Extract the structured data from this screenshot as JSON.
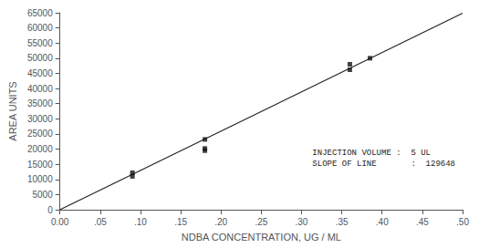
{
  "chart_data": {
    "type": "scatter",
    "xlabel": "NDBA CONCENTRATION, UG / ML",
    "ylabel": "AREA UNITS",
    "xlim": [
      0.0,
      0.5
    ],
    "ylim": [
      0,
      65000
    ],
    "xticks": [
      {
        "value": 0.0,
        "label": "0.00"
      },
      {
        "value": 0.05,
        "label": ".05"
      },
      {
        "value": 0.1,
        "label": ".10"
      },
      {
        "value": 0.15,
        "label": ".15"
      },
      {
        "value": 0.2,
        "label": ".20"
      },
      {
        "value": 0.25,
        "label": ".25"
      },
      {
        "value": 0.3,
        "label": ".30"
      },
      {
        "value": 0.35,
        "label": ".35"
      },
      {
        "value": 0.4,
        "label": ".40"
      },
      {
        "value": 0.45,
        "label": ".45"
      },
      {
        "value": 0.5,
        "label": ".50"
      }
    ],
    "yticks": [
      0,
      5000,
      10000,
      15000,
      20000,
      25000,
      30000,
      35000,
      40000,
      45000,
      50000,
      55000,
      60000,
      65000
    ],
    "grid": false,
    "series": [
      {
        "type": "line",
        "color": "#222222",
        "x": [
          0.0,
          0.5
        ],
        "values": [
          0,
          64824
        ]
      },
      {
        "type": "scatter",
        "color": "#111111",
        "marker": "square",
        "x": [
          0.09,
          0.09,
          0.18,
          0.18,
          0.18,
          0.36,
          0.36,
          0.385
        ],
        "values": [
          11000,
          12200,
          23200,
          20200,
          19500,
          48000,
          46200,
          50000
        ]
      }
    ],
    "annotations": [
      "INJECTION VOLUME :  5 UL",
      "SLOPE OF LINE       :  129648"
    ]
  }
}
